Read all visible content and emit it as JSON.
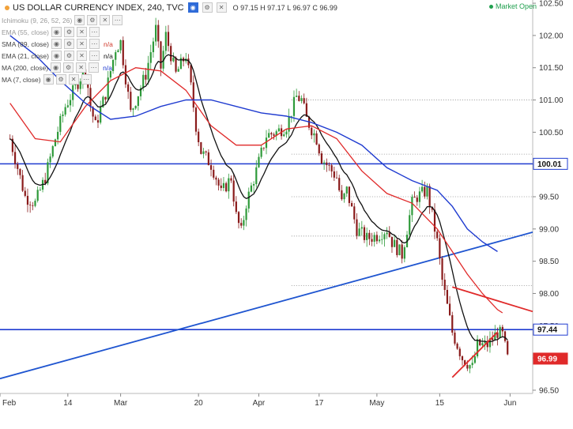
{
  "header": {
    "title": "US DOLLAR CURRENCY INDEX, 240, TVC",
    "ohlc": "O 97.15 H 97.17 L 96.97 C 96.99",
    "market_status": "Market Open"
  },
  "indicators": [
    {
      "label": "Ichimoku (9, 26, 52, 26)",
      "value": "",
      "faded": true
    },
    {
      "label": "EMA (55, close)",
      "value": "",
      "faded": true
    },
    {
      "label": "SMA (89, close)",
      "value": "n/a",
      "color": "#d0392b"
    },
    {
      "label": "EMA (21, close)",
      "value": "n/a",
      "color": "#111111"
    },
    {
      "label": "MA (200, close)",
      "value": "n/a",
      "color": "#1f3bd0"
    },
    {
      "label": "MA (7, close)",
      "value": "",
      "faded": false
    }
  ],
  "colors": {
    "bull": "#2e9a3a",
    "bear": "#8a1b1b",
    "sma89": "#e02a2a",
    "ema21": "#111111",
    "ma200": "#1f3bd0",
    "hline": "#1f3bd0",
    "trend": "#1f55d0",
    "triangle": "#e02a2a",
    "current_tag": "#e02a2a"
  },
  "chart_data": {
    "type": "candlestick",
    "title": "US DOLLAR CURRENCY INDEX, 240, TVC",
    "timeframe": "240",
    "x_labels": [
      "Feb",
      "14",
      "Mar",
      "20",
      "Apr",
      "17",
      "May",
      "15",
      "Jun"
    ],
    "y_ticks": [
      96.5,
      97.0,
      97.5,
      98.0,
      98.5,
      99.0,
      99.5,
      100.0,
      100.5,
      101.0,
      101.5,
      102.0,
      102.5
    ],
    "ylim": [
      96.45,
      102.55
    ],
    "price_tags": [
      {
        "value": 100.01,
        "label": "100.01",
        "type": "line"
      },
      {
        "value": 97.44,
        "label": "97.44",
        "type": "line"
      },
      {
        "value": 96.99,
        "label": "96.99",
        "type": "current"
      }
    ],
    "horizontal_levels": [
      100.01,
      97.44
    ],
    "dotted_levels": [
      101.0,
      100.16,
      99.5,
      98.89,
      98.12
    ],
    "price_path": [
      [
        0,
        100.4
      ],
      [
        3,
        99.5
      ],
      [
        5,
        99.4
      ],
      [
        7,
        99.8
      ],
      [
        9,
        100.4
      ],
      [
        11,
        100.9
      ],
      [
        13,
        101.2
      ],
      [
        15,
        101.5
      ],
      [
        16,
        100.9
      ],
      [
        17,
        100.6
      ],
      [
        19,
        101.1
      ],
      [
        21,
        101.8
      ],
      [
        22,
        101.9
      ],
      [
        24,
        100.8
      ],
      [
        25,
        101.0
      ],
      [
        27,
        101.4
      ],
      [
        29,
        102.1
      ],
      [
        30,
        101.5
      ],
      [
        31,
        102.0
      ],
      [
        33,
        101.4
      ],
      [
        35,
        101.7
      ],
      [
        36,
        101.2
      ],
      [
        37,
        100.6
      ],
      [
        38,
        100.2
      ],
      [
        40,
        100.0
      ],
      [
        41,
        99.8
      ],
      [
        42,
        99.55
      ],
      [
        44,
        99.8
      ],
      [
        45,
        99.2
      ],
      [
        46,
        98.95
      ],
      [
        47,
        99.4
      ],
      [
        49,
        99.9
      ],
      [
        51,
        100.45
      ],
      [
        53,
        100.5
      ],
      [
        55,
        100.6
      ],
      [
        57,
        101.05
      ],
      [
        58,
        101.0
      ],
      [
        59,
        100.7
      ],
      [
        61,
        100.4
      ],
      [
        62,
        100.1
      ],
      [
        63,
        100.0
      ],
      [
        65,
        99.8
      ],
      [
        66,
        99.4
      ],
      [
        67,
        99.6
      ],
      [
        69,
        99.0
      ],
      [
        71,
        98.85
      ],
      [
        73,
        98.9
      ],
      [
        75,
        99.0
      ],
      [
        76,
        98.8
      ],
      [
        78,
        98.6
      ],
      [
        80,
        99.4
      ],
      [
        81,
        99.5
      ],
      [
        83,
        99.6
      ],
      [
        84,
        99.2
      ],
      [
        85,
        98.8
      ],
      [
        86,
        98.2
      ],
      [
        87,
        97.8
      ],
      [
        88,
        97.4
      ],
      [
        90,
        97.0
      ],
      [
        92,
        96.85
      ],
      [
        93,
        97.2
      ],
      [
        95,
        97.2
      ],
      [
        97,
        97.4
      ],
      [
        98,
        97.35
      ],
      [
        99,
        96.99
      ]
    ],
    "sma89": [
      [
        0,
        100.95
      ],
      [
        5,
        100.4
      ],
      [
        10,
        100.35
      ],
      [
        15,
        100.9
      ],
      [
        20,
        101.3
      ],
      [
        25,
        101.5
      ],
      [
        30,
        101.45
      ],
      [
        35,
        101.15
      ],
      [
        40,
        100.6
      ],
      [
        45,
        100.3
      ],
      [
        50,
        100.3
      ],
      [
        55,
        100.55
      ],
      [
        60,
        100.6
      ],
      [
        65,
        100.4
      ],
      [
        70,
        99.9
      ],
      [
        75,
        99.55
      ],
      [
        80,
        99.4
      ],
      [
        85,
        99.0
      ],
      [
        88,
        98.65
      ],
      [
        91,
        98.3
      ],
      [
        94,
        98.0
      ],
      [
        97,
        97.75
      ],
      [
        98,
        97.7
      ]
    ],
    "ma200": [
      [
        0,
        102.0
      ],
      [
        5,
        101.7
      ],
      [
        10,
        101.3
      ],
      [
        15,
        100.95
      ],
      [
        20,
        100.7
      ],
      [
        25,
        100.75
      ],
      [
        30,
        100.9
      ],
      [
        35,
        101.0
      ],
      [
        40,
        101.0
      ],
      [
        45,
        100.9
      ],
      [
        50,
        100.8
      ],
      [
        55,
        100.75
      ],
      [
        60,
        100.65
      ],
      [
        65,
        100.5
      ],
      [
        70,
        100.3
      ],
      [
        75,
        99.95
      ],
      [
        80,
        99.75
      ],
      [
        85,
        99.6
      ],
      [
        88,
        99.35
      ],
      [
        91,
        99.0
      ],
      [
        94,
        98.8
      ],
      [
        97,
        98.65
      ]
    ],
    "trendline_start": [
      -2,
      96.68
    ],
    "trendline_end": [
      104,
      98.95
    ],
    "triangle_upper": [
      [
        88,
        98.1
      ],
      [
        104,
        97.72
      ]
    ],
    "triangle_lower": [
      [
        88,
        96.7
      ],
      [
        97,
        97.4
      ]
    ]
  }
}
